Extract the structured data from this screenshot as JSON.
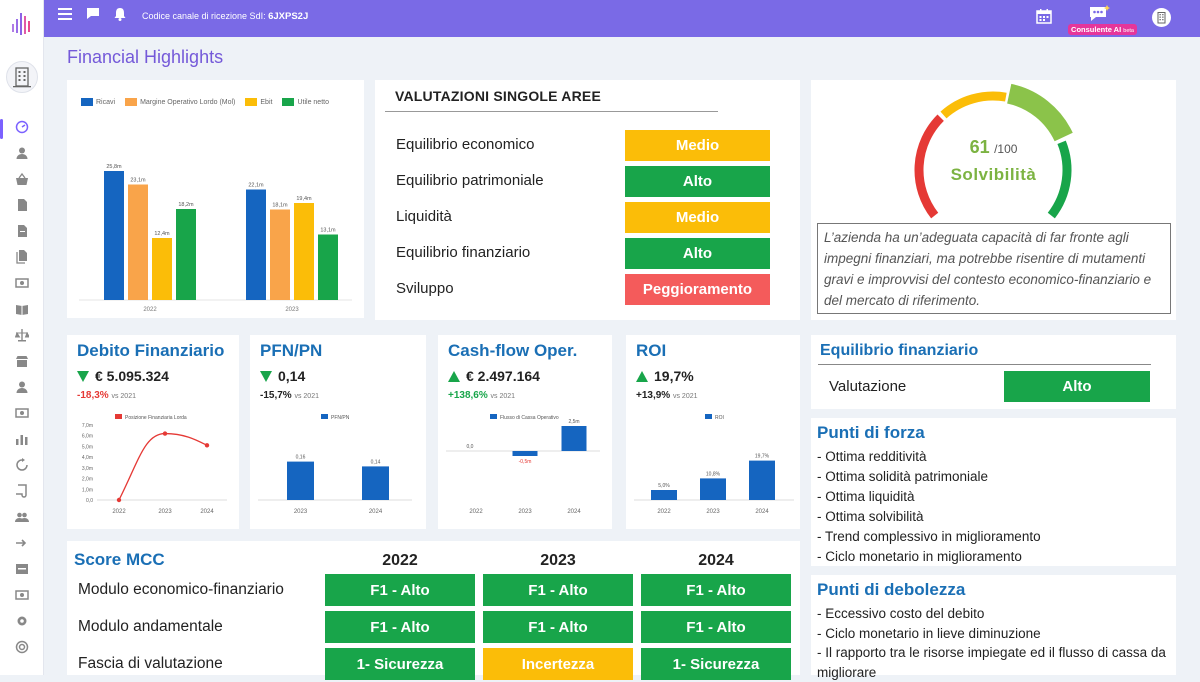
{
  "topbar": {
    "channel_label": "Codice canale di ricezione SdI:",
    "channel_code": "6JXPS2J",
    "consultant_badge": "Consulente AI",
    "consultant_badge_suffix": "beta"
  },
  "page_title": "Financial Highlights",
  "sidebar": {
    "icons": [
      "dashboard-icon",
      "user-icon",
      "basket-icon",
      "document-icon",
      "document-2-icon",
      "documents-icon",
      "cash-icon",
      "book-icon",
      "scale-icon",
      "store-icon",
      "person-icon",
      "cash-2-icon",
      "bar-chart-icon",
      "refresh-icon",
      "contract-icon",
      "group-icon",
      "transfer-icon",
      "inbox-icon",
      "money-icon",
      "settings-icon",
      "support-icon"
    ]
  },
  "main_chart": {
    "legend": [
      "Ricavi",
      "Margine Operativo Lordo (Mol)",
      "Ebit",
      "Utile netto"
    ],
    "colors": [
      "#1565c0",
      "#f9a44a",
      "#fbbd08",
      "#18a54a"
    ]
  },
  "valutazioni": {
    "title": "VALUTAZIONI SINGOLE AREE",
    "rows": [
      {
        "label": "Equilibrio economico",
        "value": "Medio",
        "color": "yellow"
      },
      {
        "label": "Equilibrio patrimoniale",
        "value": "Alto",
        "color": "green"
      },
      {
        "label": "Liquidità",
        "value": "Medio",
        "color": "yellow"
      },
      {
        "label": "Equilibrio finanziario",
        "value": "Alto",
        "color": "green"
      },
      {
        "label": "Sviluppo",
        "value": "Peggioramento",
        "color": "red"
      }
    ]
  },
  "solvibilita": {
    "score": "61",
    "max": "/100",
    "label": "Solvibilità",
    "score_value": 61,
    "description": "L’azienda ha un’adeguata capacità di far fronte agli impegni finanziari, ma potrebbe risentire di mutamenti gravi e improvvisi del contesto economico-finanziario e del mercato di riferimento."
  },
  "kpis": [
    {
      "title": "Debito Finanziario",
      "value": "€ 5.095.324",
      "trend": "down",
      "delta": "-18,3%",
      "delta_color": "#e53935",
      "vs": "vs 2021"
    },
    {
      "title": "PFN/PN",
      "value": "0,14",
      "trend": "down",
      "delta": "-15,7%",
      "delta_color": "#222",
      "vs": "vs 2021"
    },
    {
      "title": "Cash-flow Oper.",
      "value": "€ 2.497.164",
      "trend": "up",
      "delta": "+138,6%",
      "delta_color": "#18a54a",
      "vs": "vs 2021"
    },
    {
      "title": "ROI",
      "value": "19,7%",
      "trend": "up",
      "delta": "+13,9%",
      "delta_color": "#222",
      "vs": "vs 2021"
    }
  ],
  "equilibrio_finanziario": {
    "title": "Equilibrio finanziario",
    "label": "Valutazione",
    "value": "Alto"
  },
  "punti_forza": {
    "title": "Punti di forza",
    "items": [
      "- Ottima redditività",
      "- Ottima solidità patrimoniale",
      "- Ottima liquidità",
      "- Ottima solvibilità",
      "- Trend complessivo in miglioramento",
      "- Ciclo monetario in miglioramento"
    ]
  },
  "punti_debolezza": {
    "title": "Punti di debolezza",
    "items": [
      "- Eccessivo costo del debito",
      "- Ciclo monetario in lieve diminuzione",
      "- Il rapporto tra le risorse impiegate ed il flusso di cassa da migliorare"
    ]
  },
  "score_mcc": {
    "title": "Score MCC",
    "years": [
      "2022",
      "2023",
      "2024"
    ],
    "rows": [
      {
        "label": "Modulo economico-finanziario",
        "values": [
          "F1 - Alto",
          "F1 - Alto",
          "F1 - Alto"
        ],
        "colors": [
          "green",
          "green",
          "green"
        ]
      },
      {
        "label": "Modulo andamentale",
        "values": [
          "F1 - Alto",
          "F1 - Alto",
          "F1 - Alto"
        ],
        "colors": [
          "green",
          "green",
          "green"
        ]
      },
      {
        "label": "Fascia di valutazione",
        "values": [
          "1- Sicurezza",
          "Incertezza",
          "1- Sicurezza"
        ],
        "colors": [
          "green",
          "yellow",
          "green"
        ]
      }
    ]
  },
  "chart_data": [
    {
      "type": "bar",
      "categories": [
        "2022",
        "2023"
      ],
      "series": [
        {
          "name": "Ricavi",
          "values": [
            25.8,
            22.1
          ],
          "labels": [
            "25,8m",
            "22,1m"
          ],
          "color": "#1565c0"
        },
        {
          "name": "Margine Operativo Lordo (Mol)",
          "values": [
            23.1,
            18.1
          ],
          "labels": [
            "23,1m",
            "18,1m"
          ],
          "color": "#f9a44a"
        },
        {
          "name": "Ebit",
          "values": [
            12.4,
            19.4
          ],
          "labels": [
            "12,4m",
            "19,4m"
          ],
          "color": "#fbbd08"
        },
        {
          "name": "Utile netto",
          "values": [
            18.2,
            13.1
          ],
          "labels": [
            "18,2m",
            "13,1m"
          ],
          "color": "#18a54a"
        }
      ],
      "ylim": [
        0,
        30
      ]
    },
    {
      "type": "line",
      "categories": [
        "2022",
        "2023",
        "2024"
      ],
      "series": [
        {
          "name": "Posizione Finanziaria Lorda",
          "values": [
            0.0,
            6.2,
            5.1
          ],
          "color": "#e53935"
        }
      ],
      "yticks": [
        "0,0",
        "1,0m",
        "2,0m",
        "3,0m",
        "4,0m",
        "5,0m",
        "6,0m",
        "7,0m"
      ],
      "ylim": [
        0,
        7
      ]
    },
    {
      "type": "bar",
      "categories": [
        "2023",
        "2024"
      ],
      "series": [
        {
          "name": "PFN/PN",
          "values": [
            0.16,
            0.14
          ],
          "labels": [
            "0,16",
            "0,14"
          ],
          "color": "#1565c0"
        }
      ],
      "ylim": [
        0,
        0.25
      ]
    },
    {
      "type": "bar",
      "categories": [
        "2022",
        "2023",
        "2024"
      ],
      "series": [
        {
          "name": "Flusso di Cassa Operativo",
          "values": [
            0.0,
            -0.5,
            2.5
          ],
          "labels": [
            "0,0",
            "-0,5m",
            "2,5m"
          ],
          "color": "#1565c0"
        }
      ]
    },
    {
      "type": "bar",
      "categories": [
        "2022",
        "2023",
        "2024"
      ],
      "series": [
        {
          "name": "ROI",
          "values": [
            5.0,
            10.8,
            19.7
          ],
          "labels": [
            "5,0%",
            "10,8%",
            "19,7%"
          ],
          "color": "#1565c0"
        }
      ],
      "ylim": [
        0,
        30
      ]
    }
  ]
}
